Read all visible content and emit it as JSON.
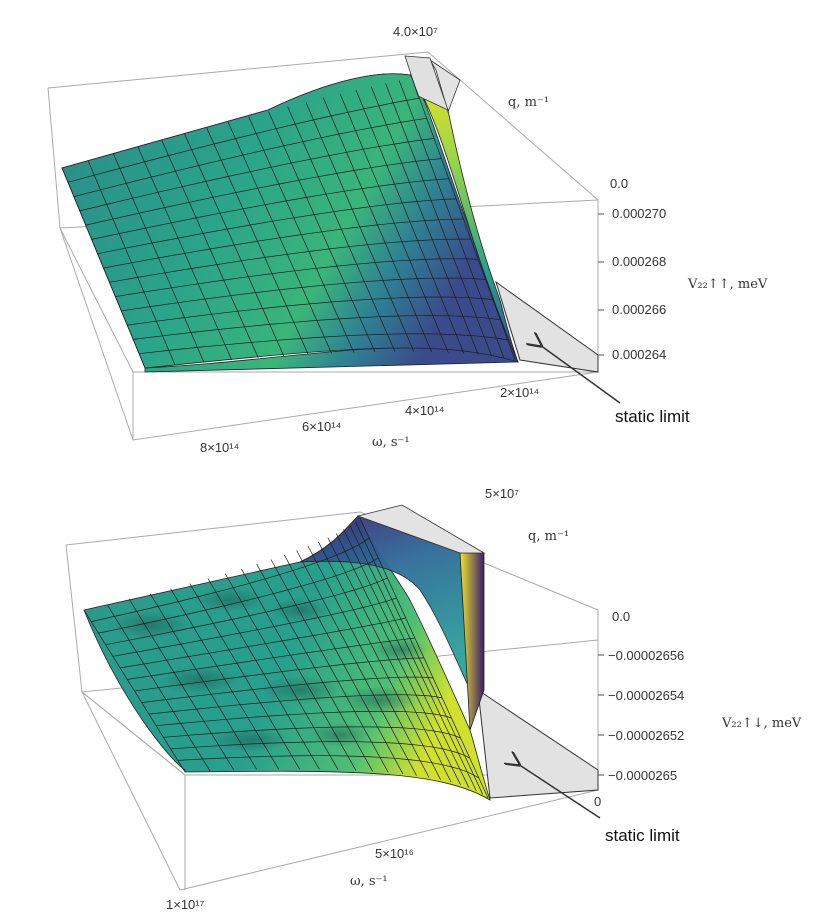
{
  "chart_data": [
    {
      "type": "surface",
      "x_axis": {
        "label": "ω, s⁻¹",
        "ticks": [
          "8×10¹⁴",
          "6×10¹⁴",
          "4×10¹⁴",
          "2×10¹⁴"
        ]
      },
      "y_axis": {
        "label": "q, m⁻¹",
        "ticks": [
          "4.0×10⁷",
          "0.0"
        ]
      },
      "z_axis": {
        "label": "V₂₂↑↑, meV",
        "ticks": [
          "0.000270",
          "0.000268",
          "0.000266",
          "0.000264"
        ],
        "zlim": [
          0.000264,
          0.00027
        ]
      },
      "annotation": "static limit",
      "colormap": [
        "#2c7f8e",
        "#24a582",
        "#44bd6f",
        "#97d448",
        "#f2e51e"
      ]
    },
    {
      "type": "surface",
      "x_axis": {
        "label": "ω, s⁻¹",
        "ticks": [
          "1×10¹⁷",
          "5×10¹⁶",
          "0"
        ]
      },
      "y_axis": {
        "label": "q, m⁻¹",
        "ticks": [
          "5×10⁷",
          "0.0"
        ]
      },
      "z_axis": {
        "label": "V₂₂↑↓, meV",
        "ticks": [
          "−0.00002656",
          "−0.00002654",
          "−0.00002652",
          "−0.0000265"
        ],
        "zlim": [
          -2.656e-05,
          -2.65e-05
        ]
      },
      "annotation": "static limit",
      "colormap": [
        "#3a1e6e",
        "#2e5f96",
        "#2ba89a",
        "#6fcf64",
        "#f4e61e"
      ]
    }
  ]
}
